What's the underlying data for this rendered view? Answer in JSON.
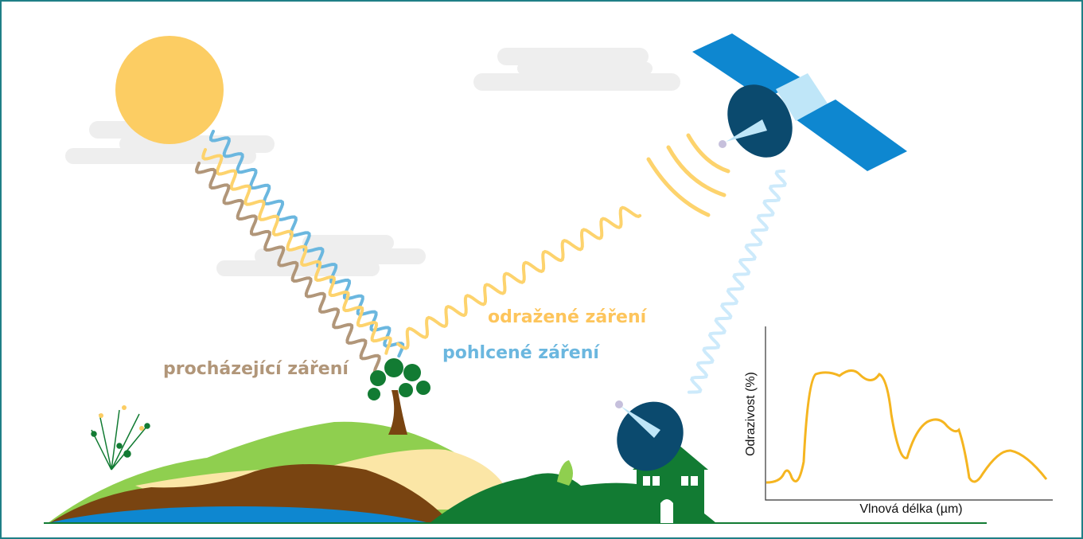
{
  "labels": {
    "transmitted": "procházející záření",
    "absorbed": "pohlcené záření",
    "reflected": "odražené záření"
  },
  "inset": {
    "ylabel": "Odrazivost (%)",
    "xlabel": "Vlnová délka (µm)"
  }
}
